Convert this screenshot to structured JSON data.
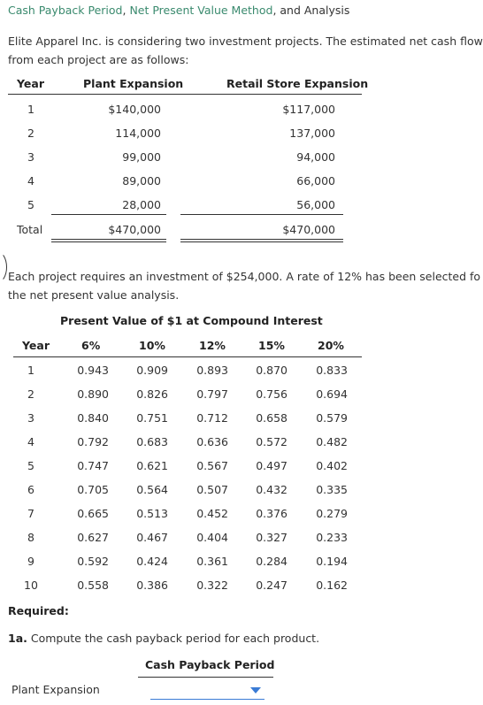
{
  "title": {
    "part1": "Cash Payback Period",
    "sep1": ", ",
    "part2": "Net Present Value Method",
    "sep2": ", and Analysis"
  },
  "intro": {
    "line1": "Elite Apparel Inc. is considering two investment projects. The estimated net cash flow",
    "line2": "from each project are as follows:"
  },
  "cashflow_table": {
    "headers": [
      "Year",
      "Plant Expansion",
      "Retail Store Expansion"
    ],
    "rows": [
      {
        "year": "1",
        "plant": "$140,000",
        "retail": "$117,000"
      },
      {
        "year": "2",
        "plant": "114,000",
        "retail": "137,000"
      },
      {
        "year": "3",
        "plant": "99,000",
        "retail": "94,000"
      },
      {
        "year": "4",
        "plant": "89,000",
        "retail": "66,000"
      },
      {
        "year": "5",
        "plant": "28,000",
        "retail": "56,000"
      }
    ],
    "total": {
      "label": "Total",
      "plant": "$470,000",
      "retail": "$470,000"
    }
  },
  "para2": {
    "line1": "Each project requires an investment of $254,000. A rate of 12% has been selected fo",
    "line2": "the net present value analysis."
  },
  "pv_table": {
    "caption": "Present Value of $1 at Compound Interest",
    "headers": [
      "Year",
      "6%",
      "10%",
      "12%",
      "15%",
      "20%"
    ],
    "rows": [
      [
        "1",
        "0.943",
        "0.909",
        "0.893",
        "0.870",
        "0.833"
      ],
      [
        "2",
        "0.890",
        "0.826",
        "0.797",
        "0.756",
        "0.694"
      ],
      [
        "3",
        "0.840",
        "0.751",
        "0.712",
        "0.658",
        "0.579"
      ],
      [
        "4",
        "0.792",
        "0.683",
        "0.636",
        "0.572",
        "0.482"
      ],
      [
        "5",
        "0.747",
        "0.621",
        "0.567",
        "0.497",
        "0.402"
      ],
      [
        "6",
        "0.705",
        "0.564",
        "0.507",
        "0.432",
        "0.335"
      ],
      [
        "7",
        "0.665",
        "0.513",
        "0.452",
        "0.376",
        "0.279"
      ],
      [
        "8",
        "0.627",
        "0.467",
        "0.404",
        "0.327",
        "0.233"
      ],
      [
        "9",
        "0.592",
        "0.424",
        "0.361",
        "0.284",
        "0.194"
      ],
      [
        "10",
        "0.558",
        "0.386",
        "0.322",
        "0.247",
        "0.162"
      ]
    ]
  },
  "required": {
    "label": "Required:",
    "q1a_num": "1a.",
    "q1a_text": " Compute the cash payback period for each product.",
    "column_header": "Cash Payback Period",
    "row_label": "Plant Expansion",
    "select_value": ""
  },
  "colors": {
    "title_link": "#3a8a6e",
    "dropdown_accent": "#3a7bd5"
  }
}
